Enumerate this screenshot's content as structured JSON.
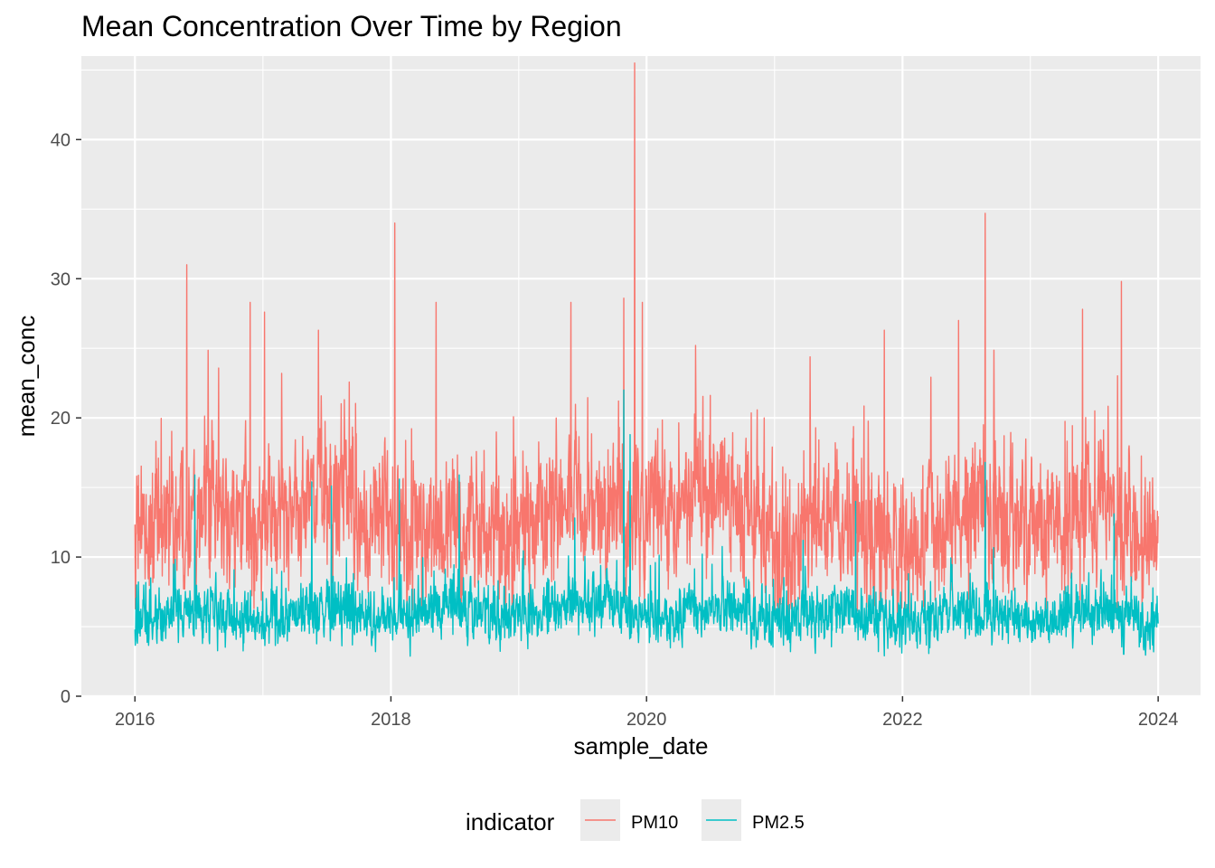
{
  "chart_data": {
    "type": "line",
    "title": "Mean Concentration Over Time by Region",
    "xlabel": "sample_date",
    "ylabel": "mean_conc",
    "x_range": [
      "2016-01-01",
      "2024-01-01"
    ],
    "xlim": [
      "2015-08-01",
      "2024-05-01"
    ],
    "ylim": [
      0,
      46
    ],
    "x_ticks": [
      "2016",
      "2018",
      "2020",
      "2022",
      "2024"
    ],
    "y_ticks": [
      0,
      10,
      20,
      30,
      40
    ],
    "grid": true,
    "legend_title": "indicator",
    "legend_position": "bottom",
    "series": [
      {
        "name": "PM10",
        "color": "#F8766D",
        "samples_per_year": 365,
        "baseline_by_year": [
          12.5,
          13.5,
          12.0,
          13.0,
          13.5,
          11.5,
          12.5,
          12.5
        ],
        "noise_sd": 3.6,
        "floor": 5.5,
        "peaks": [
          {
            "date": "2016-05-28",
            "value": 31.0
          },
          {
            "date": "2016-11-25",
            "value": 28.3
          },
          {
            "date": "2017-01-05",
            "value": 27.6
          },
          {
            "date": "2017-06-08",
            "value": 26.3
          },
          {
            "date": "2018-01-12",
            "value": 34.0
          },
          {
            "date": "2018-05-10",
            "value": 28.3
          },
          {
            "date": "2019-05-30",
            "value": 28.3
          },
          {
            "date": "2019-10-28",
            "value": 28.6
          },
          {
            "date": "2019-11-28",
            "value": 45.5
          },
          {
            "date": "2019-12-20",
            "value": 28.3
          },
          {
            "date": "2021-11-10",
            "value": 26.3
          },
          {
            "date": "2022-08-25",
            "value": 34.7
          },
          {
            "date": "2022-06-10",
            "value": 27.0
          },
          {
            "date": "2023-05-30",
            "value": 27.8
          },
          {
            "date": "2023-09-18",
            "value": 29.8
          }
        ]
      },
      {
        "name": "PM2.5",
        "color": "#00BFC4",
        "samples_per_year": 365,
        "baseline_by_year": [
          5.8,
          5.8,
          6.0,
          6.3,
          6.0,
          5.6,
          5.8,
          5.8
        ],
        "noise_sd": 1.4,
        "floor": 1.7,
        "peaks": [
          {
            "date": "2016-06-20",
            "value": 15.9
          },
          {
            "date": "2017-05-20",
            "value": 15.4
          },
          {
            "date": "2017-07-15",
            "value": 15.1
          },
          {
            "date": "2018-01-25",
            "value": 15.6
          },
          {
            "date": "2018-07-15",
            "value": 15.9
          },
          {
            "date": "2019-06-10",
            "value": 12.8
          },
          {
            "date": "2019-10-28",
            "value": 22.0
          },
          {
            "date": "2019-11-15",
            "value": 18.8
          },
          {
            "date": "2021-08-20",
            "value": 14.0
          },
          {
            "date": "2022-08-25",
            "value": 16.8
          },
          {
            "date": "2023-08-28",
            "value": 13.1
          }
        ]
      }
    ]
  }
}
